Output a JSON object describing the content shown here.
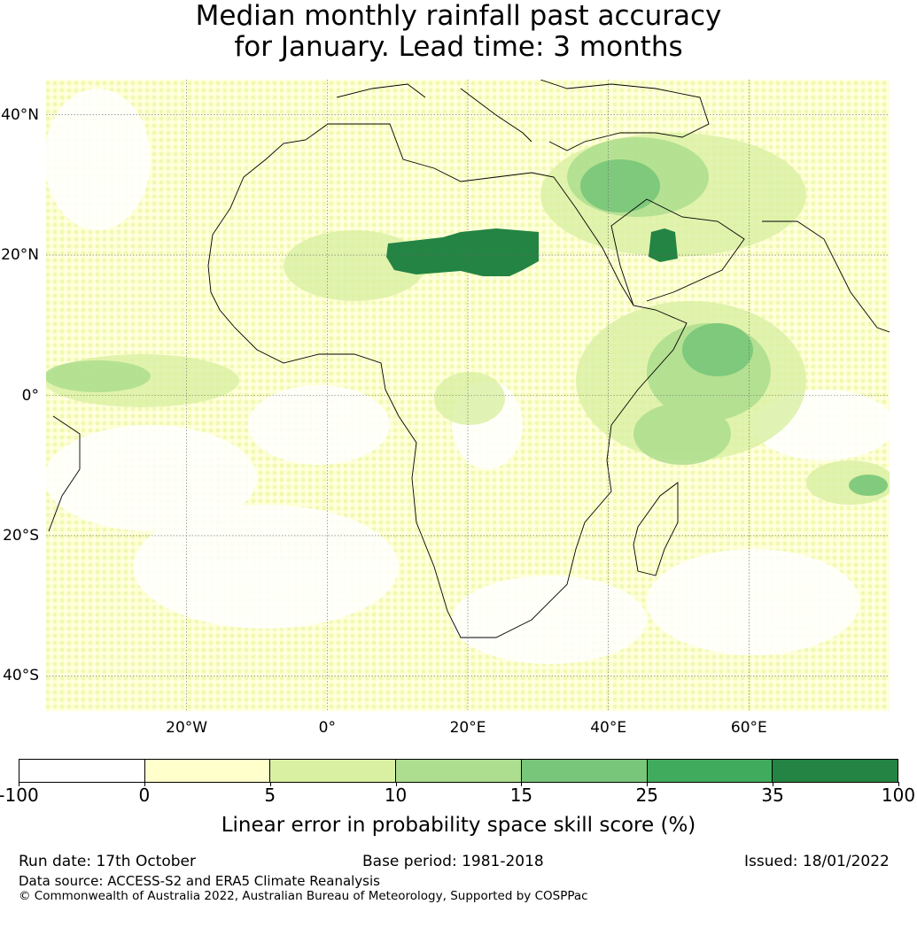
{
  "title": {
    "line1": "Median monthly rainfall past accuracy",
    "line2": "for January. Lead time: 3 months"
  },
  "map": {
    "region": "Africa",
    "lon_range": [
      -40,
      80
    ],
    "lat_range": [
      -45,
      45
    ],
    "lat_ticks": [
      {
        "value": 40,
        "label": "40°N"
      },
      {
        "value": 20,
        "label": "20°N"
      },
      {
        "value": 0,
        "label": "0°"
      },
      {
        "value": -20,
        "label": "20°S"
      },
      {
        "value": -40,
        "label": "40°S"
      }
    ],
    "lon_ticks": [
      {
        "value": -20,
        "label": "20°W"
      },
      {
        "value": 0,
        "label": "0°"
      },
      {
        "value": 20,
        "label": "20°E"
      },
      {
        "value": 40,
        "label": "40°E"
      },
      {
        "value": 60,
        "label": "60°E"
      }
    ],
    "gridlines": true
  },
  "colorbar": {
    "tick_labels": [
      "-100",
      "0",
      "5",
      "10",
      "15",
      "25",
      "35",
      "100"
    ],
    "colors": [
      "#ffffff",
      "#ffffcc",
      "#d9f0a3",
      "#addd8e",
      "#78c679",
      "#41ab5d",
      "#238443"
    ],
    "label": "Linear error in probability space skill score (%)"
  },
  "footer": {
    "run_date": "Run date: 17th October",
    "base_period": "Base period: 1981-2018",
    "issued": "Issued: 18/01/2022",
    "data_source": "Data source: ACCESS-S2 and ERA5 Climate Reanalysis",
    "copyright": "© Commonwealth of Australia 2022, Australian Bureau of Meteorology, Supported by COSPPac"
  }
}
